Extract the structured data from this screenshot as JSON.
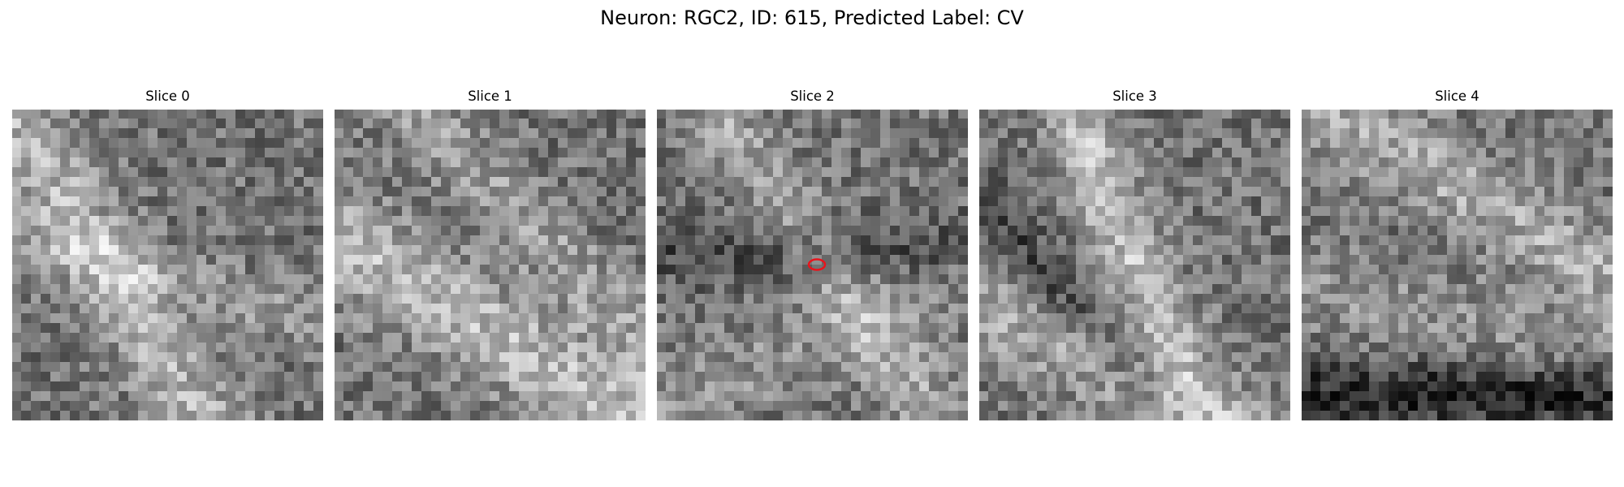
{
  "figure": {
    "title": "Neuron: RGC2, ID: 615, Predicted Label: CV"
  },
  "slices": [
    {
      "title": "Slice 0",
      "marker": false
    },
    {
      "title": "Slice 1",
      "marker": false
    },
    {
      "title": "Slice 2",
      "marker": true
    },
    {
      "title": "Slice 3",
      "marker": false
    },
    {
      "title": "Slice 4",
      "marker": false
    }
  ],
  "colormap": "gray",
  "marker_color": "#e8141c"
}
